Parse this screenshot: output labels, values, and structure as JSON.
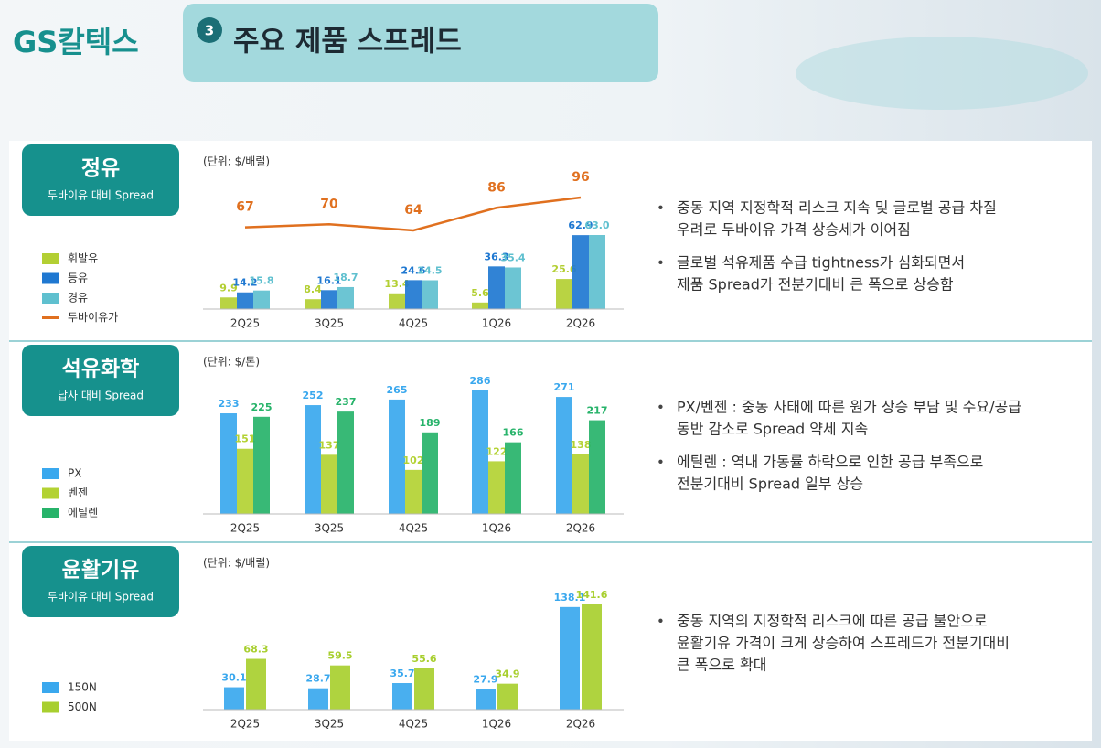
{
  "header": {
    "logo": "GS칼텍스",
    "number": "3",
    "title": "주요 제품 스프레드"
  },
  "chart_data": [
    {
      "type": "bar",
      "title": "정유",
      "subtitle": "두바이유 대비 Spread",
      "unit": "(단위: $/배럴)",
      "categories": [
        "2Q25",
        "3Q25",
        "4Q25",
        "1Q26",
        "2Q26"
      ],
      "series": [
        {
          "name": "휘발유",
          "color": "#b3cf33",
          "values": [
            9.9,
            8.4,
            13.4,
            5.6,
            25.6
          ]
        },
        {
          "name": "등유",
          "color": "#1f78d1",
          "values": [
            14.2,
            16.1,
            24.6,
            36.3,
            62.9
          ]
        },
        {
          "name": "경유",
          "color": "#5fc0cf",
          "values": [
            15.8,
            18.7,
            24.5,
            35.4,
            63.0
          ],
          "value_labels": [
            "15.8",
            "18.7",
            "24.5",
            "35.4",
            "63.0"
          ]
        },
        {
          "name": "두바이유가",
          "color": "#e0701f",
          "type": "line",
          "values": [
            67,
            70,
            64,
            86,
            96
          ]
        }
      ]
    },
    {
      "type": "bar",
      "title": "석유화학",
      "subtitle": "납사 대비 Spread",
      "unit": "(단위: $/톤)",
      "categories": [
        "2Q25",
        "3Q25",
        "4Q25",
        "1Q26",
        "2Q26"
      ],
      "series": [
        {
          "name": "PX",
          "color": "#3aa8ee",
          "values": [
            233,
            252,
            265,
            286,
            271
          ]
        },
        {
          "name": "벤젠",
          "color": "#b3d233",
          "values": [
            151,
            137,
            102,
            122,
            138
          ]
        },
        {
          "name": "에틸렌",
          "color": "#27b36a",
          "values": [
            225,
            237,
            189,
            166,
            217
          ]
        }
      ]
    },
    {
      "type": "bar",
      "title": "윤활기유",
      "subtitle": "두바이유 대비 Spread",
      "unit": "(단위: $/배럴)",
      "categories": [
        "2Q25",
        "3Q25",
        "4Q25",
        "1Q26",
        "2Q26"
      ],
      "series": [
        {
          "name": "150N",
          "color": "#3aa8ee",
          "values": [
            30.1,
            28.7,
            35.7,
            27.9,
            138.1
          ]
        },
        {
          "name": "500N",
          "color": "#a8cf2f",
          "values": [
            68.3,
            59.5,
            55.6,
            34.9,
            141.6
          ]
        }
      ]
    }
  ],
  "commentary": [
    {
      "bullets": [
        [
          "중동 지역 지정학적 리스크 지속 및 글로벌 공급 차질",
          "우려로 두바이유 가격 상승세가 이어짐"
        ],
        [
          "글로벌 석유제품 수급 tightness가 심화되면서",
          "제품 Spread가 전분기대비 큰 폭으로 상승함"
        ]
      ]
    },
    {
      "bullets": [
        [
          "PX/벤젠 : 중동 사태에 따른 원가 상승 부담 및 수요/공급",
          "동반 감소로 Spread 약세 지속"
        ],
        [
          "에틸렌 : 역내 가동률 하락으로 인한 공급 부족으로",
          "전분기대비 Spread 일부 상승"
        ]
      ]
    },
    {
      "bullets": [
        [
          "중동 지역의 지정학적 리스크에 따른 공급 불안으로",
          "윤활기유 가격이 크게 상승하여 스프레드가 전분기대비",
          "큰 폭으로 확대"
        ]
      ]
    }
  ]
}
